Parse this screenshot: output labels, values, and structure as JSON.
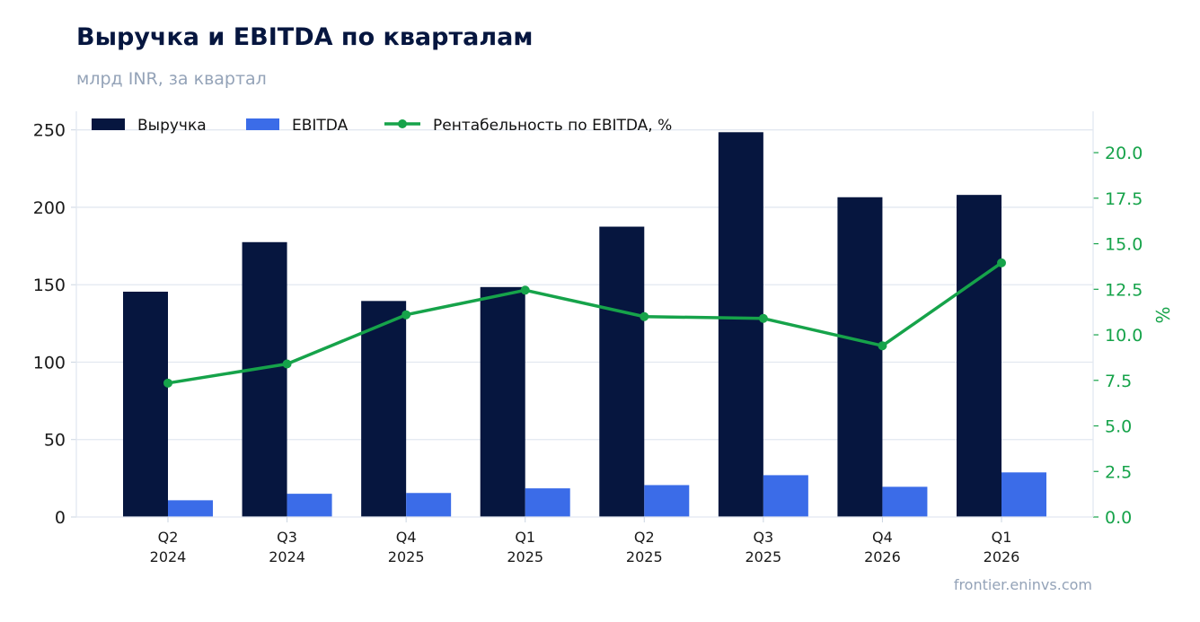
{
  "header": {
    "title": "Выручка и EBITDA по кварталам",
    "subtitle": "млрд INR, за квартал"
  },
  "footer": {
    "source": "frontier.eninvs.com"
  },
  "colors": {
    "revenue": "#06163f",
    "ebitda": "#3b6ce8",
    "margin": "#16a34a",
    "grid": "#e2e8f0"
  },
  "chart_data": {
    "type": "bar",
    "categories": [
      [
        "Q2",
        "2024"
      ],
      [
        "Q3",
        "2024"
      ],
      [
        "Q4",
        "2025"
      ],
      [
        "Q1",
        "2025"
      ],
      [
        "Q2",
        "2025"
      ],
      [
        "Q3",
        "2025"
      ],
      [
        "Q4",
        "2026"
      ],
      [
        "Q1",
        "2026"
      ]
    ],
    "series": [
      {
        "name": "Выручка",
        "type": "bar",
        "axis": "left",
        "values": [
          145.5,
          177.5,
          139.5,
          148.5,
          187.5,
          248.5,
          206.5,
          208.0
        ]
      },
      {
        "name": "EBITDA",
        "type": "bar",
        "axis": "left",
        "values": [
          10.8,
          15.0,
          15.5,
          18.5,
          20.6,
          27.0,
          19.5,
          28.8
        ]
      },
      {
        "name": "Рентабельность по EBITDA, %",
        "type": "line",
        "axis": "right",
        "values": [
          7.35,
          8.4,
          11.1,
          12.45,
          11.0,
          10.9,
          9.4,
          13.95
        ]
      }
    ],
    "y_left": {
      "min": 0,
      "max": 262,
      "ticks": [
        0,
        50,
        100,
        150,
        200,
        250
      ]
    },
    "y_right": {
      "min": 0,
      "max": 22.27,
      "ticks": [
        "0.0",
        "2.5",
        "5.0",
        "7.5",
        "10.0",
        "12.5",
        "15.0",
        "17.5",
        "20.0"
      ],
      "label": "%"
    },
    "legend_placement": "top-left",
    "grid": true
  }
}
